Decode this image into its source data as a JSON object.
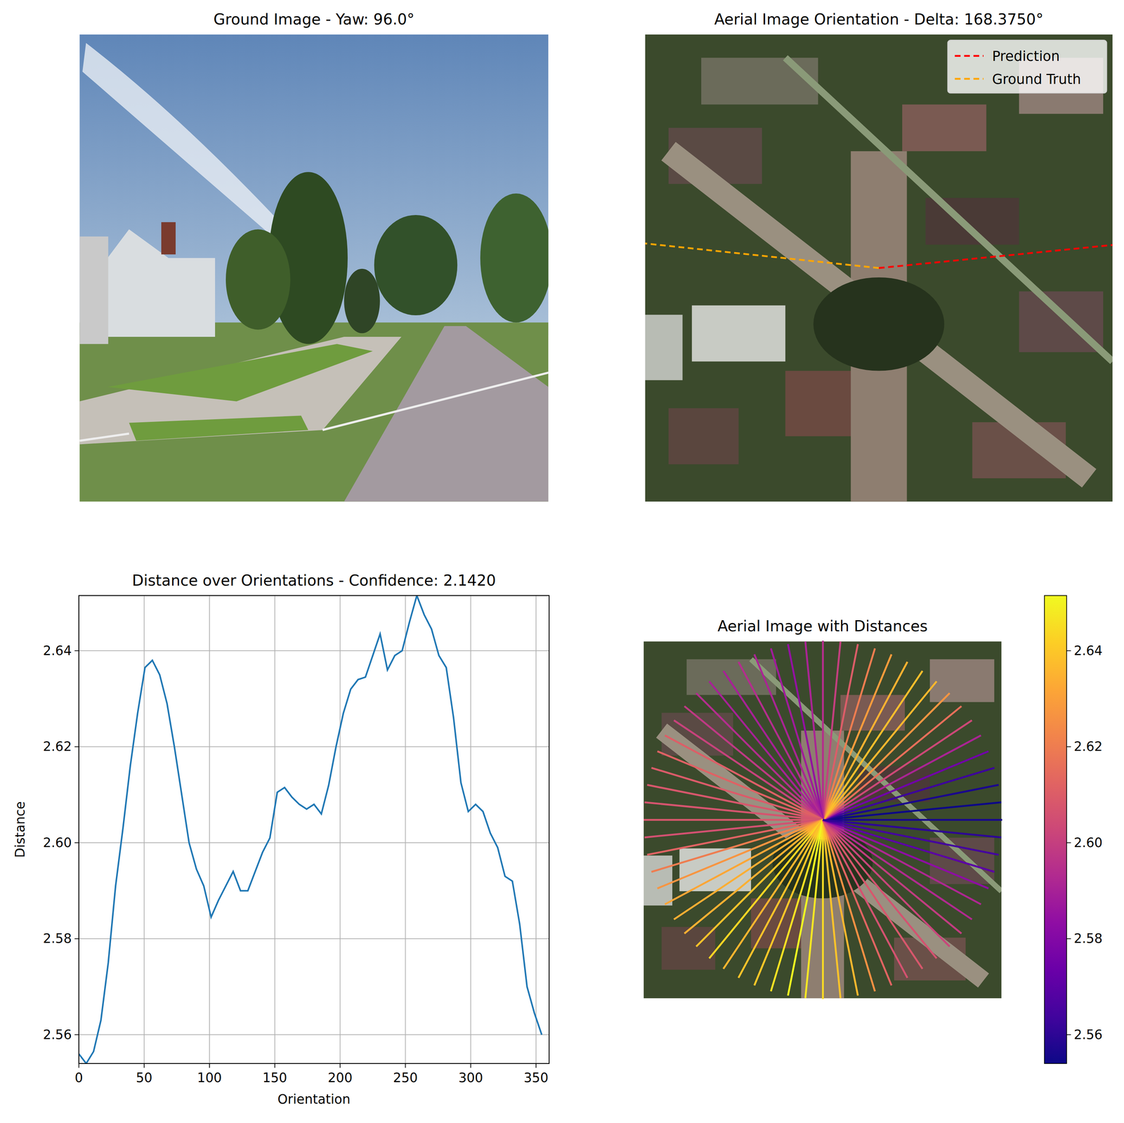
{
  "chart_data": [
    {
      "type": "image",
      "title": "Ground Image - Yaw: 96.0°"
    },
    {
      "type": "orientation",
      "title": "Aerial Image Orientation - Delta: 168.3750°",
      "legend": "upper right",
      "series": [
        {
          "name": "Prediction",
          "color": "#ff0000",
          "line_style": "dashed",
          "values": [
            5.625
          ]
        },
        {
          "name": "Ground Truth",
          "color": "#ffa500",
          "line_style": "dashed",
          "values": [
            174.0
          ]
        }
      ]
    },
    {
      "type": "line",
      "title": "Distance over Orientations - Confidence: 2.1420",
      "x_label": "Orientation",
      "y_label": "Distance",
      "color": "#1f77b4",
      "grid": true,
      "x": [
        0,
        5.625,
        11.25,
        16.875,
        22.5,
        28.125,
        33.75,
        39.375,
        45,
        50.625,
        56.25,
        61.875,
        67.5,
        73.125,
        78.75,
        84.375,
        90,
        95.625,
        101.25,
        106.875,
        112.5,
        118.125,
        123.75,
        129.375,
        135,
        140.625,
        146.25,
        151.875,
        157.5,
        163.125,
        168.75,
        174.375,
        180,
        185.625,
        191.25,
        196.875,
        202.5,
        208.125,
        213.75,
        219.375,
        225,
        230.625,
        236.25,
        241.875,
        247.5,
        253.125,
        258.75,
        264.375,
        270,
        275.625,
        281.25,
        286.875,
        292.5,
        298.125,
        303.75,
        309.375,
        315,
        320.625,
        326.25,
        331.875,
        337.5,
        343.125,
        348.75,
        354.375
      ],
      "values": [
        2.556,
        2.554,
        2.5565,
        2.563,
        2.575,
        2.591,
        2.603,
        2.616,
        2.627,
        2.6365,
        2.638,
        2.635,
        2.629,
        2.62,
        2.61,
        2.6,
        2.5945,
        2.591,
        2.5845,
        2.588,
        2.591,
        2.594,
        2.59,
        2.59,
        2.594,
        2.598,
        2.601,
        2.6105,
        2.6115,
        2.6095,
        2.608,
        2.607,
        2.608,
        2.606,
        2.612,
        2.62,
        2.627,
        2.632,
        2.634,
        2.6345,
        2.639,
        2.6435,
        2.636,
        2.639,
        2.64,
        2.646,
        2.6515,
        2.6475,
        2.6445,
        2.639,
        2.6365,
        2.626,
        2.6125,
        2.6065,
        2.608,
        2.6065,
        2.602,
        2.599,
        2.593,
        2.592,
        2.583,
        2.57,
        2.5645,
        2.56
      ],
      "xlim": [
        0,
        360
      ],
      "ylim": [
        2.554,
        2.6515
      ],
      "xticks": [
        0,
        50,
        100,
        150,
        200,
        250,
        300,
        350
      ],
      "yticks": [
        2.56,
        2.58,
        {
          "value": 2.6,
          "label": "2.60"
        },
        2.62,
        2.64
      ]
    },
    {
      "type": "polar",
      "title": "Aerial Image with Distances",
      "x": [
        0,
        5.625,
        11.25,
        16.875,
        22.5,
        28.125,
        33.75,
        39.375,
        45,
        50.625,
        56.25,
        61.875,
        67.5,
        73.125,
        78.75,
        84.375,
        90,
        95.625,
        101.25,
        106.875,
        112.5,
        118.125,
        123.75,
        129.375,
        135,
        140.625,
        146.25,
        151.875,
        157.5,
        163.125,
        168.75,
        174.375,
        180,
        185.625,
        191.25,
        196.875,
        202.5,
        208.125,
        213.75,
        219.375,
        225,
        230.625,
        236.25,
        241.875,
        247.5,
        253.125,
        258.75,
        264.375,
        270,
        275.625,
        281.25,
        286.875,
        292.5,
        298.125,
        303.75,
        309.375,
        315,
        320.625,
        326.25,
        331.875,
        337.5,
        343.125,
        348.75,
        354.375
      ],
      "values": [
        2.556,
        2.554,
        2.5565,
        2.563,
        2.575,
        2.591,
        2.603,
        2.616,
        2.627,
        2.6365,
        2.638,
        2.635,
        2.629,
        2.62,
        2.61,
        2.6,
        2.5945,
        2.591,
        2.5845,
        2.588,
        2.591,
        2.594,
        2.59,
        2.59,
        2.594,
        2.598,
        2.601,
        2.6105,
        2.6115,
        2.6095,
        2.608,
        2.607,
        2.608,
        2.606,
        2.612,
        2.62,
        2.627,
        2.632,
        2.634,
        2.6345,
        2.639,
        2.6435,
        2.636,
        2.639,
        2.64,
        2.646,
        2.6515,
        2.6475,
        2.6445,
        2.639,
        2.6365,
        2.626,
        2.6125,
        2.6065,
        2.608,
        2.6065,
        2.602,
        2.599,
        2.593,
        2.592,
        2.583,
        2.57,
        2.5645,
        2.56
      ],
      "colorbar_range": [
        2.554,
        2.6515
      ],
      "colorbar_ticks": [
        2.56,
        2.58,
        {
          "value": 2.6,
          "label": "2.60"
        },
        2.62,
        2.64
      ]
    }
  ]
}
